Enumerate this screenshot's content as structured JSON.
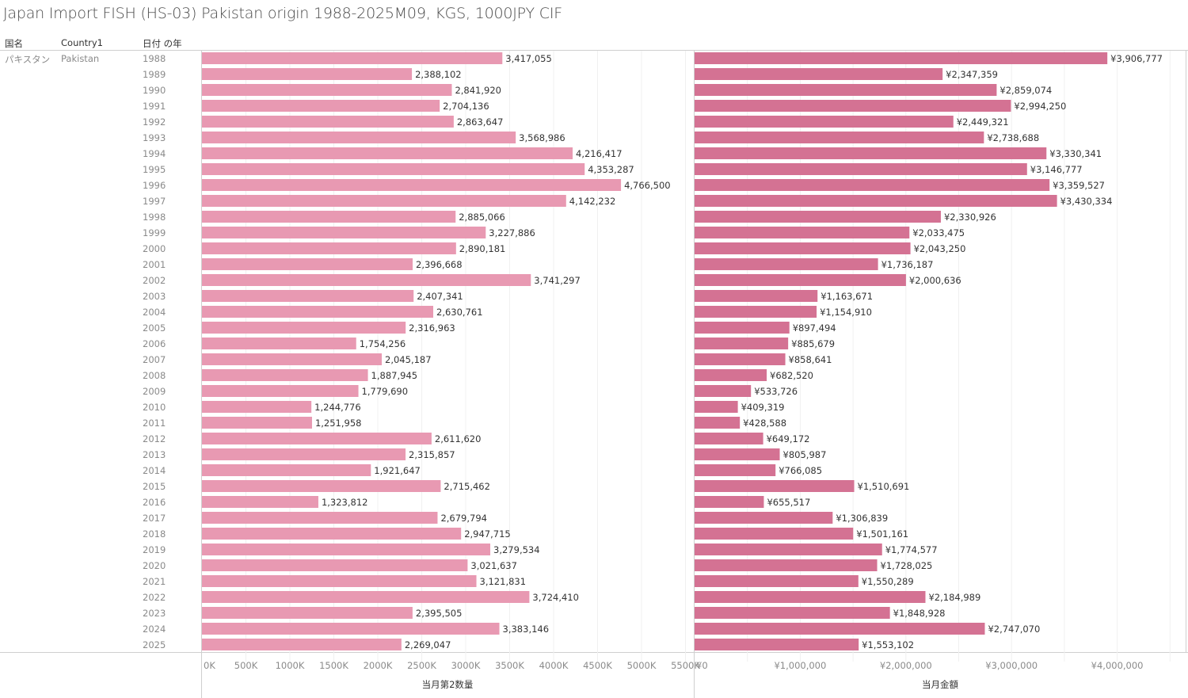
{
  "title": "Japan Import FISH (HS-03) Pakistan origin 1988-2025M09, KGS, 1000JPY CIF",
  "headers": {
    "country_jp": "国名",
    "country1": "Country1",
    "year": "日付 の年"
  },
  "row": {
    "country_jp": "パキスタン",
    "country1": "Pakistan"
  },
  "colors": {
    "quantity_bar": "#e899b2",
    "amount_bar": "#d47293",
    "gridline": "#f0f0f0",
    "border": "#cfcfcf"
  },
  "chart_data": [
    {
      "type": "bar",
      "orientation": "horizontal",
      "title": "Japan Import FISH (HS-03) Pakistan origin 1988-2025M09, KGS, 1000JPY CIF",
      "xlabel": "当月第2数量",
      "ylabel": "日付 の年",
      "xlim": [
        0,
        5500000
      ],
      "xticks": [
        0,
        500000,
        1000000,
        1500000,
        2000000,
        2500000,
        3000000,
        3500000,
        4000000,
        4500000,
        5000000,
        5500000
      ],
      "xtick_labels": [
        "0K",
        "500K",
        "1000K",
        "1500K",
        "2000K",
        "2500K",
        "3000K",
        "3500K",
        "4000K",
        "4500K",
        "5000K",
        "5500K"
      ],
      "grid": true,
      "categories": [
        "1988",
        "1989",
        "1990",
        "1991",
        "1992",
        "1993",
        "1994",
        "1995",
        "1996",
        "1997",
        "1998",
        "1999",
        "2000",
        "2001",
        "2002",
        "2003",
        "2004",
        "2005",
        "2006",
        "2007",
        "2008",
        "2009",
        "2010",
        "2011",
        "2012",
        "2013",
        "2014",
        "2015",
        "2016",
        "2017",
        "2018",
        "2019",
        "2020",
        "2021",
        "2022",
        "2023",
        "2024",
        "2025"
      ],
      "values": [
        3417055,
        2388102,
        2841920,
        2704136,
        2863647,
        3568986,
        4216417,
        4353287,
        4766500,
        4142232,
        2885066,
        3227886,
        2890181,
        2396668,
        3741297,
        2407341,
        2630761,
        2316963,
        1754256,
        2045187,
        1887945,
        1779690,
        1244776,
        1251958,
        2611620,
        2315857,
        1921647,
        2715462,
        1323812,
        2679794,
        2947715,
        3279534,
        3021637,
        3121831,
        3724410,
        2395505,
        3383146,
        2269047
      ],
      "labels": [
        "3,417,055",
        "2,388,102",
        "2,841,920",
        "2,704,136",
        "2,863,647",
        "3,568,986",
        "4,216,417",
        "4,353,287",
        "4,766,500",
        "4,142,232",
        "2,885,066",
        "3,227,886",
        "2,890,181",
        "2,396,668",
        "3,741,297",
        "2,407,341",
        "2,630,761",
        "2,316,963",
        "1,754,256",
        "2,045,187",
        "1,887,945",
        "1,779,690",
        "1,244,776",
        "1,251,958",
        "2,611,620",
        "2,315,857",
        "1,921,647",
        "2,715,462",
        "1,323,812",
        "2,679,794",
        "2,947,715",
        "3,279,534",
        "3,021,637",
        "3,121,831",
        "3,724,410",
        "2,395,505",
        "3,383,146",
        "2,269,047"
      ]
    },
    {
      "type": "bar",
      "orientation": "horizontal",
      "xlabel": "当月金額",
      "xlim": [
        0,
        4600000
      ],
      "xticks": [
        0,
        1000000,
        2000000,
        3000000,
        4000000
      ],
      "xtick_labels": [
        "¥0",
        "¥1,000,000",
        "¥2,000,000",
        "¥3,000,000",
        "¥4,000,000"
      ],
      "grid_step": 500000,
      "grid": true,
      "categories": [
        "1988",
        "1989",
        "1990",
        "1991",
        "1992",
        "1993",
        "1994",
        "1995",
        "1996",
        "1997",
        "1998",
        "1999",
        "2000",
        "2001",
        "2002",
        "2003",
        "2004",
        "2005",
        "2006",
        "2007",
        "2008",
        "2009",
        "2010",
        "2011",
        "2012",
        "2013",
        "2014",
        "2015",
        "2016",
        "2017",
        "2018",
        "2019",
        "2020",
        "2021",
        "2022",
        "2023",
        "2024",
        "2025"
      ],
      "values": [
        3906777,
        2347359,
        2859074,
        2994250,
        2449321,
        2738688,
        3330341,
        3146777,
        3359527,
        3430334,
        2330926,
        2033475,
        2043250,
        1736187,
        2000636,
        1163671,
        1154910,
        897494,
        885679,
        858641,
        682520,
        533726,
        409319,
        428588,
        649172,
        805987,
        766085,
        1510691,
        655517,
        1306839,
        1501161,
        1774577,
        1728025,
        1550289,
        2184989,
        1848928,
        2747070,
        1553102
      ],
      "labels": [
        "¥3,906,777",
        "¥2,347,359",
        "¥2,859,074",
        "¥2,994,250",
        "¥2,449,321",
        "¥2,738,688",
        "¥3,330,341",
        "¥3,146,777",
        "¥3,359,527",
        "¥3,430,334",
        "¥2,330,926",
        "¥2,033,475",
        "¥2,043,250",
        "¥1,736,187",
        "¥2,000,636",
        "¥1,163,671",
        "¥1,154,910",
        "¥897,494",
        "¥885,679",
        "¥858,641",
        "¥682,520",
        "¥533,726",
        "¥409,319",
        "¥428,588",
        "¥649,172",
        "¥805,987",
        "¥766,085",
        "¥1,510,691",
        "¥655,517",
        "¥1,306,839",
        "¥1,501,161",
        "¥1,774,577",
        "¥1,728,025",
        "¥1,550,289",
        "¥2,184,989",
        "¥1,848,928",
        "¥2,747,070",
        "¥1,553,102"
      ]
    }
  ]
}
